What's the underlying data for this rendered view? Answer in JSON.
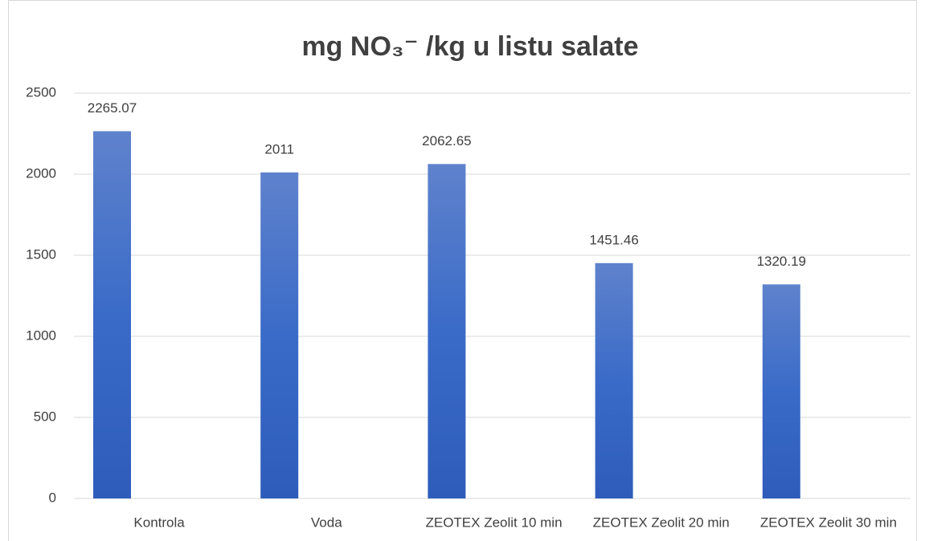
{
  "chart_data": {
    "type": "bar",
    "title": "mg NO₃⁻ /kg u listu salate",
    "categories": [
      "Kontrola",
      "Voda",
      "ZEOTEX Zeolit 10 min",
      "ZEOTEX Zeolit 20 min",
      "ZEOTEX Zeolit 30 min"
    ],
    "values": [
      2265.07,
      2011,
      2062.65,
      1451.46,
      1320.19
    ],
    "color": "#3a6bc8",
    "ylim": [
      0,
      2500
    ],
    "yticks": [
      0,
      500,
      1000,
      1500,
      2000,
      2500
    ],
    "grid": true
  }
}
